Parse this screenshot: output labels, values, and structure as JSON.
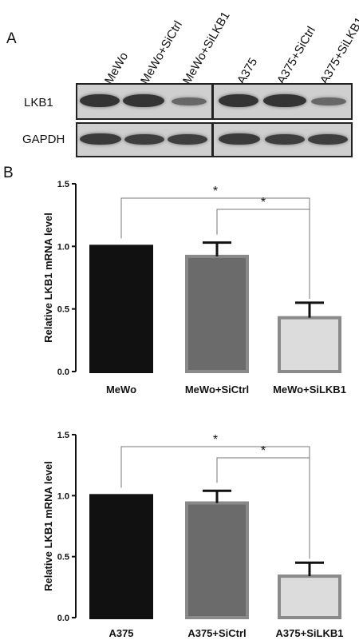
{
  "panels": {
    "a_label": "A",
    "b_label": "B"
  },
  "blot": {
    "lanes": [
      "MeWo",
      "MeWo+SiCtrl",
      "MeWo+SiLKB1",
      "A375",
      "A375+SiCtrl",
      "A375+SiLKB1"
    ],
    "rows": [
      {
        "label": "LKB1",
        "intensity": [
          1.0,
          1.0,
          0.45,
          1.0,
          1.0,
          0.45
        ]
      },
      {
        "label": "GAPDH",
        "intensity": [
          0.95,
          0.9,
          0.9,
          0.95,
          0.9,
          0.9
        ]
      }
    ]
  },
  "chart_data": [
    {
      "type": "bar",
      "categories": [
        "MeWo",
        "MeWo+SiCtrl",
        "MeWo+SiLKB1"
      ],
      "values": [
        1.0,
        0.92,
        0.43
      ],
      "errors": [
        0,
        0.11,
        0.12
      ],
      "colors": [
        "#111111",
        "#6b6b6b",
        "#dcdcdc"
      ],
      "ylabel": "Relative LKB1 mRNA level",
      "yticks": [
        "0.0",
        "0.5",
        "1.0",
        "1.5"
      ],
      "ylim": [
        0,
        1.5
      ],
      "significance": [
        {
          "from": 0,
          "to": 2,
          "label": "*"
        },
        {
          "from": 1,
          "to": 2,
          "label": "*"
        }
      ]
    },
    {
      "type": "bar",
      "categories": [
        "A375",
        "A375+SiCtrl",
        "A375+SiLKB1"
      ],
      "values": [
        1.0,
        0.94,
        0.34
      ],
      "errors": [
        0,
        0.1,
        0.11
      ],
      "colors": [
        "#111111",
        "#6b6b6b",
        "#dcdcdc"
      ],
      "ylabel": "Relative LKB1 mRNA level",
      "yticks": [
        "0.0",
        "0.5",
        "1.0",
        "1.5"
      ],
      "ylim": [
        0,
        1.5
      ],
      "significance": [
        {
          "from": 0,
          "to": 2,
          "label": "*"
        },
        {
          "from": 1,
          "to": 2,
          "label": "*"
        }
      ]
    }
  ]
}
